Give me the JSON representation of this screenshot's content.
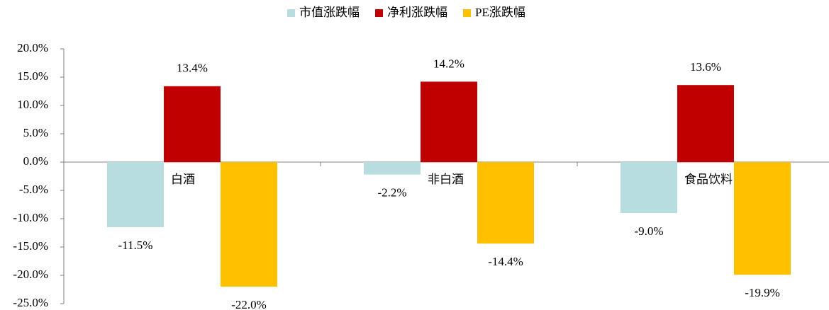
{
  "chart_data": {
    "type": "bar",
    "categories": [
      "白酒",
      "非白酒",
      "食品饮料"
    ],
    "series": [
      {
        "name": "市值涨跌幅",
        "color": "#b7dde0",
        "values": [
          -11.5,
          -2.2,
          -9.0
        ],
        "value_labels": [
          "-11.5%",
          "-2.2%",
          "-9.0%"
        ]
      },
      {
        "name": "净利涨跌幅",
        "color": "#c00000",
        "values": [
          13.4,
          14.2,
          13.6
        ],
        "value_labels": [
          "13.4%",
          "14.2%",
          "13.6%"
        ]
      },
      {
        "name": "PE涨跌幅",
        "color": "#ffc000",
        "values": [
          -22.0,
          -14.4,
          -19.9
        ],
        "value_labels": [
          "-22.0%",
          "-14.4%",
          "-19.9%"
        ]
      }
    ],
    "ylim": [
      -25,
      20
    ],
    "yticks": [
      {
        "value": 20,
        "label": "20.0%"
      },
      {
        "value": 15,
        "label": "15.0%"
      },
      {
        "value": 10,
        "label": "10.0%"
      },
      {
        "value": 5,
        "label": "5.0%"
      },
      {
        "value": 0,
        "label": "0.0%"
      },
      {
        "value": -5,
        "label": "-5.0%"
      },
      {
        "value": -10,
        "label": "-10.0%"
      },
      {
        "value": -15,
        "label": "-15.0%"
      },
      {
        "value": -20,
        "label": "-20.0%"
      },
      {
        "value": -25,
        "label": "-25.0%"
      }
    ],
    "legend": "top"
  }
}
